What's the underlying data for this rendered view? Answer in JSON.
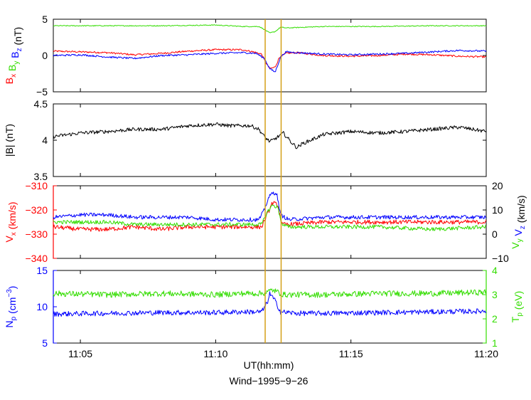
{
  "figure": {
    "xlabel": "UT(hh:mm)",
    "caption": "Wind−1995−9−26",
    "x_ticks": [
      "11:05",
      "11:10",
      "11:15",
      "11:20"
    ],
    "x_range_minutes": [
      4,
      20
    ],
    "event_markers_minutes": [
      11.83,
      12.42
    ],
    "marker_color": "#d4a017"
  },
  "chart_data": [
    {
      "type": "line",
      "panel": "B components",
      "ylim": [
        -5,
        5
      ],
      "yticks": [
        "5",
        "0",
        "−5"
      ],
      "ylabel_parts": [
        {
          "text": "B",
          "sub": "x",
          "color": "#ff0000"
        },
        {
          "text": "B",
          "sub": "y",
          "color": "#33dd00"
        },
        {
          "text": "B",
          "sub": "z",
          "color": "#0000ff"
        },
        {
          "text": "(nT)",
          "sub": "",
          "color": "#000000"
        }
      ],
      "series": [
        {
          "color": "#ff0000",
          "noise": 0.12,
          "points": [
            [
              4,
              0.6
            ],
            [
              5,
              0.5
            ],
            [
              6,
              0.4
            ],
            [
              7,
              0.1
            ],
            [
              8,
              0.3
            ],
            [
              9,
              0.6
            ],
            [
              10,
              0.8
            ],
            [
              11,
              0.8
            ],
            [
              11.4,
              0.5
            ],
            [
              11.7,
              0.2
            ],
            [
              11.85,
              -1.0
            ],
            [
              12.0,
              -1.8
            ],
            [
              12.2,
              -1.6
            ],
            [
              12.35,
              -0.3
            ],
            [
              12.6,
              0.3
            ],
            [
              13,
              0.4
            ],
            [
              14,
              0.0
            ],
            [
              15,
              -0.1
            ],
            [
              16,
              0.0
            ],
            [
              17,
              0.2
            ],
            [
              18,
              0.1
            ],
            [
              19,
              -0.1
            ],
            [
              20,
              -0.2
            ]
          ]
        },
        {
          "color": "#33dd00",
          "noise": 0.06,
          "points": [
            [
              4,
              4.1
            ],
            [
              6,
              4.1
            ],
            [
              8,
              4.1
            ],
            [
              10,
              4.2
            ],
            [
              11,
              4.0
            ],
            [
              11.6,
              4.0
            ],
            [
              11.8,
              3.6
            ],
            [
              12.0,
              3.1
            ],
            [
              12.2,
              3.3
            ],
            [
              12.4,
              3.9
            ],
            [
              12.6,
              3.8
            ],
            [
              14,
              4.0
            ],
            [
              16,
              4.0
            ],
            [
              18,
              4.1
            ],
            [
              20,
              4.1
            ]
          ]
        },
        {
          "color": "#0000ff",
          "noise": 0.12,
          "points": [
            [
              4,
              0.0
            ],
            [
              5,
              0.1
            ],
            [
              6,
              -0.2
            ],
            [
              7,
              -0.4
            ],
            [
              8,
              0.0
            ],
            [
              9,
              0.1
            ],
            [
              10,
              0.3
            ],
            [
              11,
              0.4
            ],
            [
              11.5,
              0.3
            ],
            [
              11.8,
              -0.4
            ],
            [
              12.0,
              -1.8
            ],
            [
              12.2,
              -2.3
            ],
            [
              12.4,
              -0.2
            ],
            [
              12.6,
              0.5
            ],
            [
              13,
              0.4
            ],
            [
              14,
              0.2
            ],
            [
              15,
              0.1
            ],
            [
              16,
              0.2
            ],
            [
              17,
              0.3
            ],
            [
              18,
              0.5
            ],
            [
              19,
              0.7
            ],
            [
              20,
              0.6
            ]
          ]
        }
      ]
    },
    {
      "type": "line",
      "panel": "|B|",
      "ylim": [
        3.5,
        4.5
      ],
      "yticks": [
        "4.5",
        "4",
        "3.5"
      ],
      "ylabel": "|B| (nT)",
      "series": [
        {
          "color": "#000000",
          "noise": 0.025,
          "points": [
            [
              4,
              4.05
            ],
            [
              5,
              4.1
            ],
            [
              6,
              4.12
            ],
            [
              7,
              4.15
            ],
            [
              8,
              4.15
            ],
            [
              9,
              4.2
            ],
            [
              10,
              4.22
            ],
            [
              10.5,
              4.2
            ],
            [
              11,
              4.2
            ],
            [
              11.3,
              4.2
            ],
            [
              11.6,
              4.15
            ],
            [
              11.8,
              4.05
            ],
            [
              12.0,
              3.98
            ],
            [
              12.2,
              4.02
            ],
            [
              12.5,
              4.1
            ],
            [
              12.8,
              3.97
            ],
            [
              13.0,
              3.9
            ],
            [
              13.2,
              3.95
            ],
            [
              14,
              4.08
            ],
            [
              15,
              4.12
            ],
            [
              16,
              4.1
            ],
            [
              17,
              4.12
            ],
            [
              18,
              4.15
            ],
            [
              19,
              4.18
            ],
            [
              20,
              4.12
            ]
          ]
        }
      ]
    },
    {
      "type": "line",
      "panel": "Velocity",
      "ylim": [
        -340,
        -310
      ],
      "yticks": [
        "−310",
        "−320",
        "−330",
        "−340"
      ],
      "ylim_right": [
        -10,
        20
      ],
      "yticks_right": [
        "20",
        "10",
        "0",
        "−10"
      ],
      "ylabel_parts": [
        {
          "text": "V",
          "sub": "x",
          "color": "#ff0000"
        },
        {
          "text": "(km/s)",
          "sub": "",
          "color": "#ff0000"
        }
      ],
      "ylabel_right_parts": [
        {
          "text": "V",
          "sub": "y",
          "color": "#33dd00"
        },
        {
          "text": "V",
          "sub": "z",
          "color": "#0000ff"
        },
        {
          "text": "(km/s)",
          "sub": "",
          "color": "#000000"
        }
      ],
      "series": [
        {
          "axis": "left",
          "color": "#ff0000",
          "noise": 0.9,
          "points": [
            [
              4,
              -327
            ],
            [
              5,
              -328
            ],
            [
              6,
              -328
            ],
            [
              7,
              -327
            ],
            [
              8,
              -328
            ],
            [
              9,
              -327
            ],
            [
              10,
              -327
            ],
            [
              11,
              -327
            ],
            [
              11.7,
              -327
            ],
            [
              11.9,
              -322
            ],
            [
              12.1,
              -317
            ],
            [
              12.3,
              -318
            ],
            [
              12.45,
              -326
            ],
            [
              12.7,
              -326
            ],
            [
              14,
              -325
            ],
            [
              16,
              -325
            ],
            [
              18,
              -325
            ],
            [
              20,
              -325
            ]
          ]
        },
        {
          "axis": "right",
          "color": "#33dd00",
          "noise": 0.8,
          "points": [
            [
              4,
              5
            ],
            [
              5,
              5
            ],
            [
              6,
              5
            ],
            [
              7,
              4
            ],
            [
              8,
              4
            ],
            [
              9,
              4
            ],
            [
              10,
              4
            ],
            [
              11,
              4
            ],
            [
              11.7,
              4
            ],
            [
              11.9,
              9
            ],
            [
              12.1,
              12
            ],
            [
              12.3,
              11
            ],
            [
              12.45,
              4
            ],
            [
              12.7,
              3
            ],
            [
              14,
              3
            ],
            [
              16,
              3
            ],
            [
              18,
              2
            ],
            [
              20,
              3
            ]
          ]
        },
        {
          "axis": "right",
          "color": "#0000ff",
          "noise": 0.8,
          "points": [
            [
              4,
              7
            ],
            [
              5,
              8
            ],
            [
              6,
              8
            ],
            [
              7,
              7
            ],
            [
              8,
              7
            ],
            [
              9,
              7
            ],
            [
              10,
              6
            ],
            [
              11,
              6
            ],
            [
              11.6,
              6
            ],
            [
              11.8,
              10
            ],
            [
              11.95,
              15
            ],
            [
              12.1,
              17
            ],
            [
              12.25,
              17
            ],
            [
              12.4,
              8
            ],
            [
              12.7,
              6
            ],
            [
              14,
              7
            ],
            [
              16,
              7
            ],
            [
              18,
              7
            ],
            [
              20,
              7
            ]
          ]
        }
      ]
    },
    {
      "type": "line",
      "panel": "Density and temperature",
      "ylim": [
        5,
        15
      ],
      "yticks": [
        "15",
        "10",
        "5"
      ],
      "ylim_right": [
        1,
        4
      ],
      "yticks_right": [
        "4",
        "3",
        "2",
        "1"
      ],
      "ylabel_parts": [
        {
          "text": "N",
          "sub": "p",
          "color": "#0000ff"
        },
        {
          "text": "(cm",
          "sup": "−3",
          "color": "#0000ff",
          "suffix": ")"
        }
      ],
      "ylabel_right_parts": [
        {
          "text": "T",
          "sub": "p",
          "color": "#33dd00"
        },
        {
          "text": "(eV)",
          "sub": "",
          "color": "#33dd00"
        }
      ],
      "series": [
        {
          "axis": "left",
          "color": "#0000ff",
          "noise": 0.35,
          "points": [
            [
              4,
              9.0
            ],
            [
              6,
              9.1
            ],
            [
              8,
              9.2
            ],
            [
              10,
              9.2
            ],
            [
              11,
              9.3
            ],
            [
              11.7,
              9.3
            ],
            [
              11.9,
              10.5
            ],
            [
              12.0,
              11.8
            ],
            [
              12.2,
              10.8
            ],
            [
              12.4,
              9.3
            ],
            [
              13,
              9.1
            ],
            [
              14,
              9.1
            ],
            [
              16,
              9.2
            ],
            [
              18,
              9.3
            ],
            [
              20,
              9.4
            ]
          ]
        },
        {
          "axis": "right",
          "color": "#33dd00",
          "noise": 0.12,
          "points": [
            [
              4,
              3.05
            ],
            [
              6,
              3.0
            ],
            [
              8,
              3.05
            ],
            [
              10,
              3.0
            ],
            [
              11,
              3.05
            ],
            [
              11.7,
              3.05
            ],
            [
              11.9,
              3.1
            ],
            [
              12.1,
              3.2
            ],
            [
              12.3,
              3.1
            ],
            [
              12.5,
              3.0
            ],
            [
              14,
              3.0
            ],
            [
              16,
              3.05
            ],
            [
              18,
              3.05
            ],
            [
              20,
              3.1
            ]
          ]
        }
      ]
    }
  ]
}
